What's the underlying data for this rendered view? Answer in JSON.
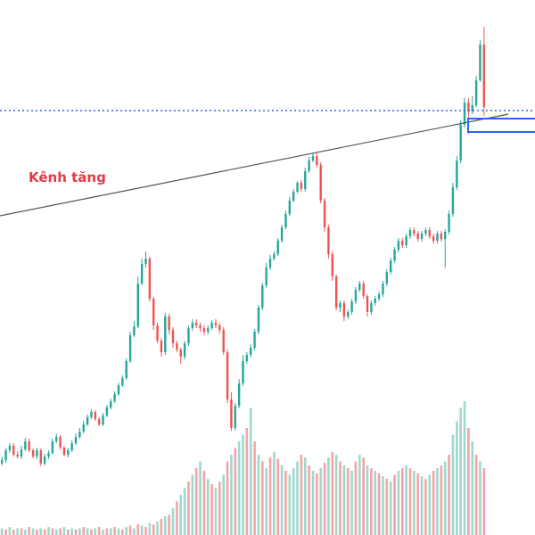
{
  "chart_data": {
    "type": "candlestick",
    "colors": {
      "up": "#26a69a",
      "down": "#ef5350",
      "volume_up": "#9fd8cf",
      "volume_down": "#f5a3a5",
      "trendline": "#555555",
      "level_line": "#2962ff",
      "label": "#e53945",
      "background": "#ffffff"
    },
    "annotation_label": "Kênh tăng",
    "candles": [
      [
        520,
        516,
        522,
        512
      ],
      [
        516,
        505,
        519,
        503
      ],
      [
        505,
        500,
        508,
        497
      ],
      [
        500,
        510,
        512,
        497
      ],
      [
        510,
        512,
        514,
        506
      ],
      [
        512,
        504,
        515,
        500
      ],
      [
        504,
        495,
        506,
        491
      ],
      [
        495,
        505,
        507,
        492
      ],
      [
        505,
        512,
        514,
        503
      ],
      [
        512,
        505,
        515,
        502
      ],
      [
        505,
        520,
        523,
        503
      ],
      [
        520,
        512,
        522,
        509
      ],
      [
        512,
        508,
        515,
        505
      ],
      [
        508,
        495,
        510,
        492
      ],
      [
        495,
        490,
        497,
        486
      ],
      [
        490,
        502,
        504,
        488
      ],
      [
        502,
        510,
        512,
        500
      ],
      [
        510,
        505,
        513,
        502
      ],
      [
        505,
        497,
        507,
        494
      ],
      [
        497,
        490,
        499,
        486
      ],
      [
        490,
        484,
        492,
        480
      ],
      [
        484,
        476,
        486,
        472
      ],
      [
        476,
        468,
        478,
        465
      ],
      [
        468,
        462,
        470,
        459
      ],
      [
        462,
        470,
        472,
        460
      ],
      [
        470,
        476,
        478,
        468
      ],
      [
        476,
        466,
        478,
        463
      ],
      [
        466,
        457,
        468,
        454
      ],
      [
        457,
        450,
        459,
        447
      ],
      [
        450,
        442,
        452,
        439
      ],
      [
        442,
        432,
        444,
        429
      ],
      [
        432,
        424,
        434,
        421
      ],
      [
        424,
        405,
        426,
        402
      ],
      [
        405,
        376,
        407,
        372
      ],
      [
        376,
        366,
        378,
        360
      ],
      [
        366,
        318,
        368,
        310
      ],
      [
        318,
        296,
        320,
        290
      ],
      [
        296,
        290,
        300,
        282
      ],
      [
        290,
        335,
        338,
        288
      ],
      [
        335,
        365,
        370,
        333
      ],
      [
        365,
        382,
        385,
        362
      ],
      [
        382,
        395,
        400,
        379
      ],
      [
        395,
        355,
        398,
        351
      ],
      [
        355,
        370,
        375,
        352
      ],
      [
        370,
        385,
        390,
        367
      ],
      [
        385,
        392,
        395,
        382
      ],
      [
        392,
        400,
        408,
        390
      ],
      [
        400,
        385,
        403,
        382
      ],
      [
        385,
        368,
        388,
        365
      ],
      [
        368,
        362,
        371,
        358
      ],
      [
        362,
        365,
        368,
        358
      ],
      [
        365,
        368,
        372,
        362
      ],
      [
        368,
        372,
        376,
        365
      ],
      [
        372,
        368,
        375,
        365
      ],
      [
        368,
        362,
        370,
        359
      ],
      [
        362,
        365,
        368,
        358
      ],
      [
        365,
        370,
        374,
        362
      ],
      [
        370,
        395,
        398,
        367
      ],
      [
        395,
        448,
        452,
        392
      ],
      [
        448,
        480,
        483,
        440
      ],
      [
        480,
        455,
        483,
        452
      ],
      [
        455,
        430,
        458,
        425
      ],
      [
        430,
        405,
        433,
        398
      ],
      [
        405,
        398,
        408,
        395
      ],
      [
        398,
        390,
        401,
        386
      ],
      [
        390,
        372,
        393,
        369
      ],
      [
        372,
        345,
        375,
        342
      ],
      [
        345,
        320,
        348,
        317
      ],
      [
        320,
        300,
        323,
        295
      ],
      [
        300,
        290,
        303,
        286
      ],
      [
        290,
        285,
        292,
        282
      ],
      [
        285,
        270,
        287,
        267
      ],
      [
        270,
        255,
        272,
        252
      ],
      [
        255,
        240,
        257,
        236
      ],
      [
        240,
        225,
        242,
        221
      ],
      [
        225,
        215,
        227,
        212
      ],
      [
        215,
        205,
        217,
        203
      ],
      [
        205,
        212,
        215,
        202
      ],
      [
        212,
        192,
        215,
        188
      ],
      [
        192,
        180,
        194,
        176
      ],
      [
        180,
        175,
        182,
        172
      ],
      [
        175,
        185,
        188,
        172
      ],
      [
        185,
        225,
        228,
        182
      ],
      [
        225,
        255,
        260,
        222
      ],
      [
        255,
        285,
        290,
        252
      ],
      [
        285,
        310,
        315,
        282
      ],
      [
        310,
        345,
        348,
        308
      ],
      [
        345,
        340,
        350,
        337
      ],
      [
        340,
        355,
        360,
        337
      ],
      [
        355,
        350,
        358,
        347
      ],
      [
        350,
        338,
        353,
        335
      ],
      [
        338,
        325,
        341,
        322
      ],
      [
        325,
        318,
        328,
        315
      ],
      [
        318,
        332,
        335,
        315
      ],
      [
        332,
        350,
        355,
        330
      ],
      [
        350,
        340,
        353,
        337
      ],
      [
        340,
        335,
        343,
        332
      ],
      [
        335,
        330,
        338,
        327
      ],
      [
        330,
        318,
        333,
        315
      ],
      [
        318,
        305,
        321,
        302
      ],
      [
        305,
        292,
        308,
        289
      ],
      [
        292,
        280,
        295,
        277
      ],
      [
        280,
        270,
        283,
        267
      ],
      [
        270,
        275,
        278,
        267
      ],
      [
        275,
        265,
        278,
        262
      ],
      [
        265,
        258,
        268,
        255
      ],
      [
        258,
        262,
        265,
        255
      ],
      [
        262,
        268,
        271,
        259
      ],
      [
        268,
        262,
        271,
        259
      ],
      [
        262,
        258,
        265,
        255
      ],
      [
        258,
        265,
        268,
        255
      ],
      [
        265,
        270,
        273,
        262
      ],
      [
        270,
        262,
        273,
        259
      ],
      [
        262,
        268,
        271,
        259
      ],
      [
        268,
        260,
        300,
        257
      ],
      [
        260,
        240,
        263,
        236
      ],
      [
        240,
        210,
        243,
        205
      ],
      [
        210,
        180,
        213,
        175
      ],
      [
        180,
        140,
        183,
        135
      ],
      [
        140,
        115,
        143,
        110
      ],
      [
        115,
        125,
        150,
        110
      ],
      [
        125,
        118,
        128,
        108
      ],
      [
        118,
        90,
        120,
        85
      ],
      [
        90,
        50,
        92,
        45
      ],
      [
        50,
        120,
        130,
        30
      ]
    ],
    "volume": [
      5,
      4,
      6,
      4,
      5,
      5,
      4,
      6,
      5,
      4,
      5,
      4,
      6,
      5,
      4,
      5,
      6,
      4,
      5,
      4,
      5,
      6,
      5,
      4,
      5,
      6,
      4,
      5,
      5,
      6,
      5,
      4,
      6,
      7,
      5,
      8,
      7,
      6,
      9,
      8,
      10,
      12,
      14,
      15,
      20,
      25,
      30,
      35,
      40,
      45,
      50,
      55,
      48,
      42,
      38,
      35,
      40,
      45,
      55,
      60,
      65,
      70,
      75,
      80,
      95,
      70,
      60,
      55,
      50,
      58,
      62,
      57,
      52,
      48,
      45,
      50,
      55,
      60,
      58,
      52,
      48,
      46,
      50,
      54,
      58,
      62,
      60,
      55,
      52,
      50,
      48,
      55,
      60,
      58,
      52,
      50,
      48,
      46,
      44,
      42,
      40,
      45,
      48,
      50,
      52,
      50,
      48,
      46,
      44,
      42,
      45,
      48,
      50,
      52,
      55,
      60,
      75,
      85,
      95,
      100,
      80,
      70,
      60,
      55,
      50
    ],
    "volume_dir": [
      1,
      0,
      1,
      0,
      1,
      0,
      1,
      0,
      1,
      0,
      1,
      0,
      1,
      0,
      1,
      0,
      1,
      0,
      1,
      0,
      1,
      0,
      1,
      0,
      1,
      0,
      1,
      0,
      1,
      0,
      1,
      0,
      1,
      0,
      1,
      0,
      1,
      0,
      1,
      0,
      1,
      0,
      1,
      0,
      1,
      0,
      1,
      1,
      0,
      1,
      0,
      1,
      0,
      1,
      0,
      1,
      0,
      1,
      0,
      1,
      0,
      1,
      1,
      0,
      1,
      0,
      1,
      0,
      1,
      0,
      1,
      0,
      1,
      0,
      1,
      1,
      1,
      0,
      1,
      0,
      1,
      0,
      1,
      0,
      1,
      0,
      1,
      0,
      1,
      0,
      1,
      0,
      1,
      0,
      1,
      0,
      1,
      0,
      1,
      0,
      1,
      0,
      1,
      0,
      1,
      0,
      1,
      0,
      1,
      0,
      1,
      0,
      1,
      0,
      1,
      0,
      1,
      1,
      1,
      1,
      0,
      1,
      0,
      1,
      0
    ]
  }
}
